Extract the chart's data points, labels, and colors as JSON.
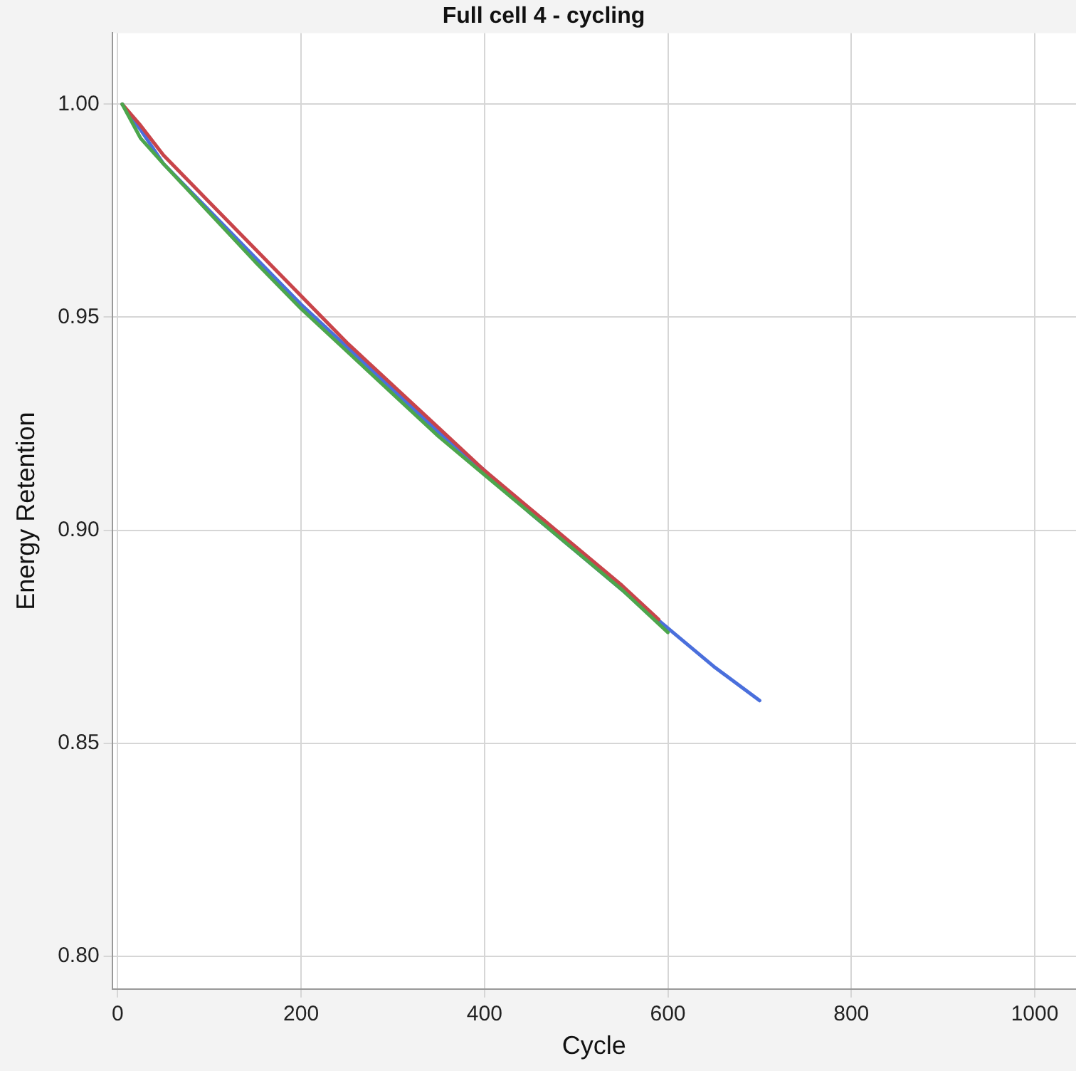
{
  "chart_data": {
    "type": "line",
    "title": "Full cell 4 - cycling",
    "xlabel": "Cycle",
    "ylabel": "Energy Retention",
    "xlim": [
      -6,
      1045
    ],
    "xticks": [
      0,
      200,
      400,
      600,
      800,
      1000
    ],
    "ylim": [
      0.7923,
      1.0167
    ],
    "yticks": [
      {
        "value": 0.8,
        "label": "0.80"
      },
      {
        "value": 0.85,
        "label": "0.85"
      },
      {
        "value": 0.9,
        "label": "0.90"
      },
      {
        "value": 0.95,
        "label": "0.95"
      },
      {
        "value": 1.0,
        "label": "1.00"
      }
    ],
    "grid": true,
    "legend": false,
    "marker": "none",
    "line_style": "solid",
    "series": [
      {
        "color": "#4a6fdc",
        "x": [
          5,
          25,
          50,
          100,
          150,
          200,
          250,
          300,
          350,
          400,
          450,
          500,
          550,
          600,
          650,
          700
        ],
        "values": [
          1.0,
          0.994,
          0.986,
          0.975,
          0.964,
          0.953,
          0.943,
          0.933,
          0.923,
          0.914,
          0.904,
          0.895,
          0.886,
          0.877,
          0.868,
          0.86
        ]
      },
      {
        "color": "#c8444a",
        "x": [
          5,
          25,
          50,
          100,
          150,
          200,
          250,
          300,
          350,
          400,
          450,
          500,
          550,
          590
        ],
        "values": [
          1.0,
          0.995,
          0.988,
          0.977,
          0.966,
          0.955,
          0.944,
          0.934,
          0.924,
          0.914,
          0.905,
          0.896,
          0.887,
          0.879
        ]
      },
      {
        "color": "#4ca64c",
        "x": [
          5,
          25,
          50,
          100,
          150,
          200,
          250,
          300,
          350,
          400,
          450,
          500,
          550,
          600
        ],
        "values": [
          1.0,
          0.992,
          0.986,
          0.9745,
          0.963,
          0.952,
          0.942,
          0.932,
          0.922,
          0.913,
          0.904,
          0.895,
          0.886,
          0.876
        ]
      }
    ]
  }
}
